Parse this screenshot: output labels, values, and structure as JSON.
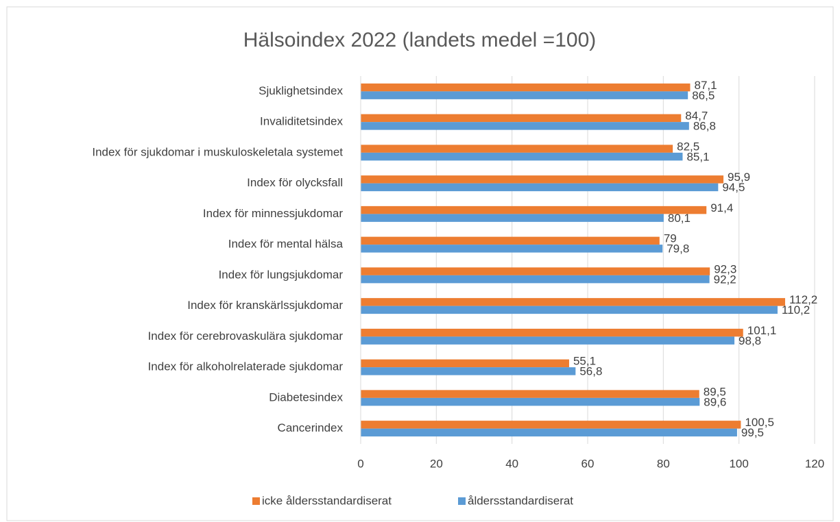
{
  "chart_data": {
    "type": "bar",
    "orientation": "horizontal",
    "title": "Hälsoindex 2022 (landets medel =100)",
    "categories": [
      "Sjuklighetsindex",
      "Invaliditetsindex",
      "Index för sjukdomar i muskuloskeletala systemet",
      "Index för olycksfall",
      "Index för minnessjukdomar",
      "Index för mental hälsa",
      "Index för lungsjukdomar",
      "Index för kranskärlssjukdomar",
      "Index för cerebrovaskulära sjukdomar",
      "Index för alkoholrelaterade sjukdomar",
      "Diabetesindex",
      "Cancerindex"
    ],
    "series": [
      {
        "name": "icke åldersstandardiserat",
        "color": "#ed7d31",
        "values": [
          87.1,
          84.7,
          82.5,
          95.9,
          91.4,
          79,
          92.3,
          112.2,
          101.1,
          55.1,
          89.5,
          100.5
        ],
        "value_labels": [
          "87,1",
          "84,7",
          "82,5",
          "95,9",
          "91,4",
          "79",
          "92,3",
          "112,2",
          "101,1",
          "55,1",
          "89,5",
          "100,5"
        ]
      },
      {
        "name": "åldersstandardiserat",
        "color": "#5b9bd5",
        "values": [
          86.5,
          86.8,
          85.1,
          94.5,
          80.1,
          79.8,
          92.2,
          110.2,
          98.8,
          56.8,
          89.6,
          99.5
        ],
        "value_labels": [
          "86,5",
          "86,8",
          "85,1",
          "94,5",
          "80,1",
          "79,8",
          "92,2",
          "110,2",
          "98,8",
          "56,8",
          "89,6",
          "99,5"
        ]
      }
    ],
    "xlim": [
      0,
      120
    ],
    "xticks": [
      0,
      20,
      40,
      60,
      80,
      100,
      120
    ],
    "grid": true,
    "legend": "bottom"
  }
}
